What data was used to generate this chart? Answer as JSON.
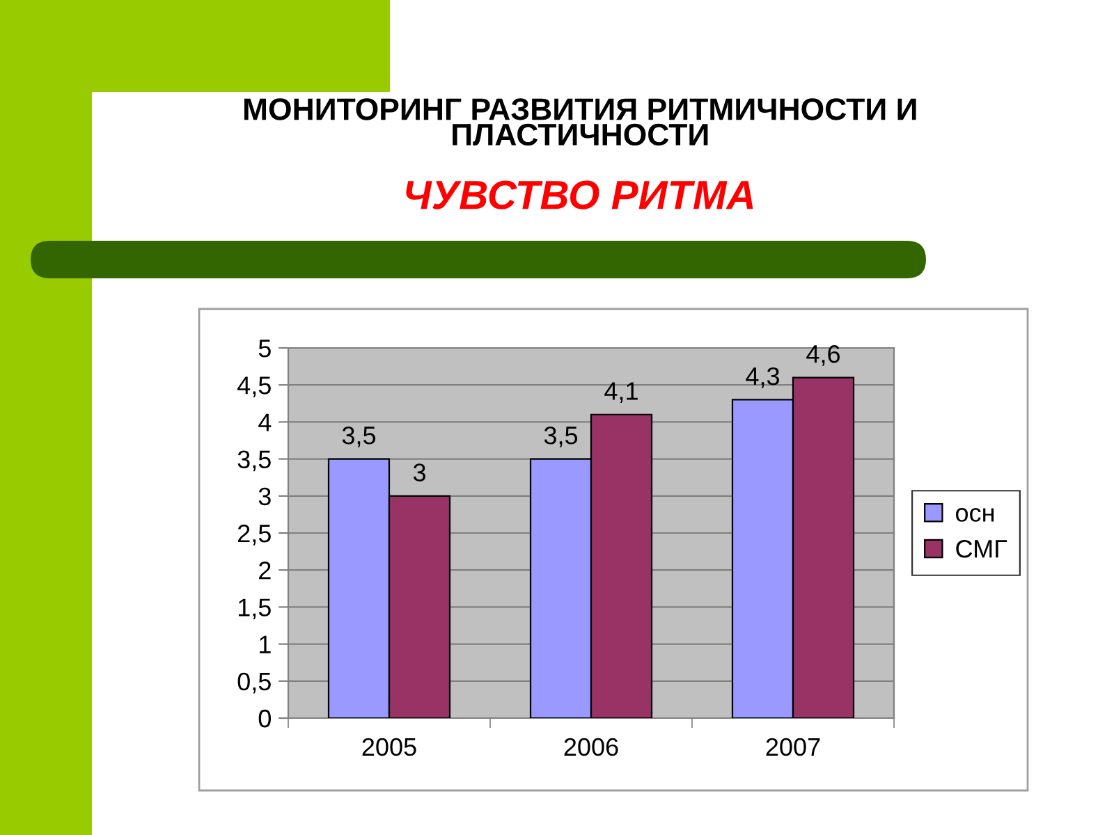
{
  "chart_data": {
    "type": "bar",
    "title": "МОНИТОРИНГ РАЗВИТИЯ РИТМИЧНОСТИ И ПЛАСТИЧНОСТИ",
    "subtitle": "ЧУВСТВО РИТМА",
    "categories": [
      "2005",
      "2006",
      "2007"
    ],
    "series": [
      {
        "name": "осн",
        "color": "#9999ff",
        "values": [
          3.5,
          3.5,
          4.3
        ],
        "value_labels": [
          "3,5",
          "3,5",
          "4,3"
        ]
      },
      {
        "name": "СМГ",
        "color": "#993366",
        "values": [
          3,
          4.1,
          4.6
        ],
        "value_labels": [
          "3",
          "4,1",
          "4,6"
        ]
      }
    ],
    "ylim": [
      0,
      5
    ],
    "yticks": [
      0,
      {
        "value": 0.5,
        "label": "0,5"
      },
      1,
      {
        "value": 1.5,
        "label": "1,5"
      },
      2,
      {
        "value": 2.5,
        "label": "2,5"
      },
      3,
      {
        "value": 3.5,
        "label": "3,5"
      },
      4,
      {
        "value": 4.5,
        "label": "4,5"
      },
      5
    ],
    "grid": "y",
    "legend": "right"
  }
}
